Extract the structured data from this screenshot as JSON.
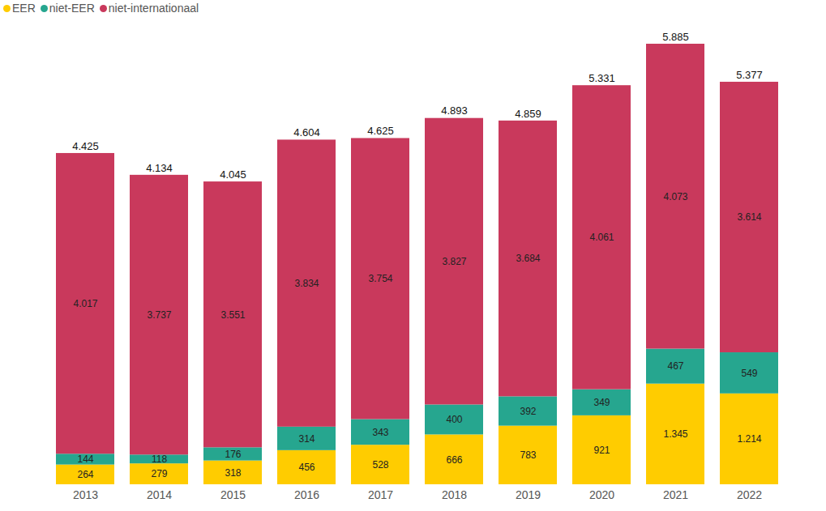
{
  "chart_data": {
    "type": "bar",
    "stacked": true,
    "data_labels": true,
    "tick_labels": "x",
    "legend": "top-left",
    "categories": [
      "2013",
      "2014",
      "2015",
      "2016",
      "2017",
      "2018",
      "2019",
      "2020",
      "2021",
      "2022"
    ],
    "ylim": [
      0,
      5885
    ],
    "series": [
      {
        "name": "EER",
        "color": "#FFCC00",
        "values": [
          264,
          279,
          318,
          456,
          528,
          666,
          783,
          921,
          1345,
          1214
        ],
        "value_labels": [
          "264",
          "279",
          "318",
          "456",
          "528",
          "666",
          "783",
          "921",
          "1.345",
          "1.214"
        ]
      },
      {
        "name": "niet-EER",
        "color": "#26A68F",
        "values": [
          144,
          118,
          176,
          314,
          343,
          400,
          392,
          349,
          467,
          549
        ],
        "value_labels": [
          "144",
          "118",
          "176",
          "314",
          "343",
          "400",
          "392",
          "349",
          "467",
          "549"
        ]
      },
      {
        "name": "niet-internationaal",
        "color": "#C9395C",
        "values": [
          4017,
          3737,
          3551,
          3834,
          3754,
          3827,
          3684,
          4061,
          4073,
          3614
        ],
        "value_labels": [
          "4.017",
          "3.737",
          "3.551",
          "3.834",
          "3.754",
          "3.827",
          "3.684",
          "4.061",
          "4.073",
          "3.614"
        ]
      }
    ],
    "totals": [
      4425,
      4134,
      4045,
      4604,
      4625,
      4893,
      4859,
      5331,
      5885,
      5377
    ],
    "total_labels": [
      "4.425",
      "4.134",
      "4.045",
      "4.604",
      "4.625",
      "4.893",
      "4.859",
      "5.331",
      "5.885",
      "5.377"
    ]
  }
}
